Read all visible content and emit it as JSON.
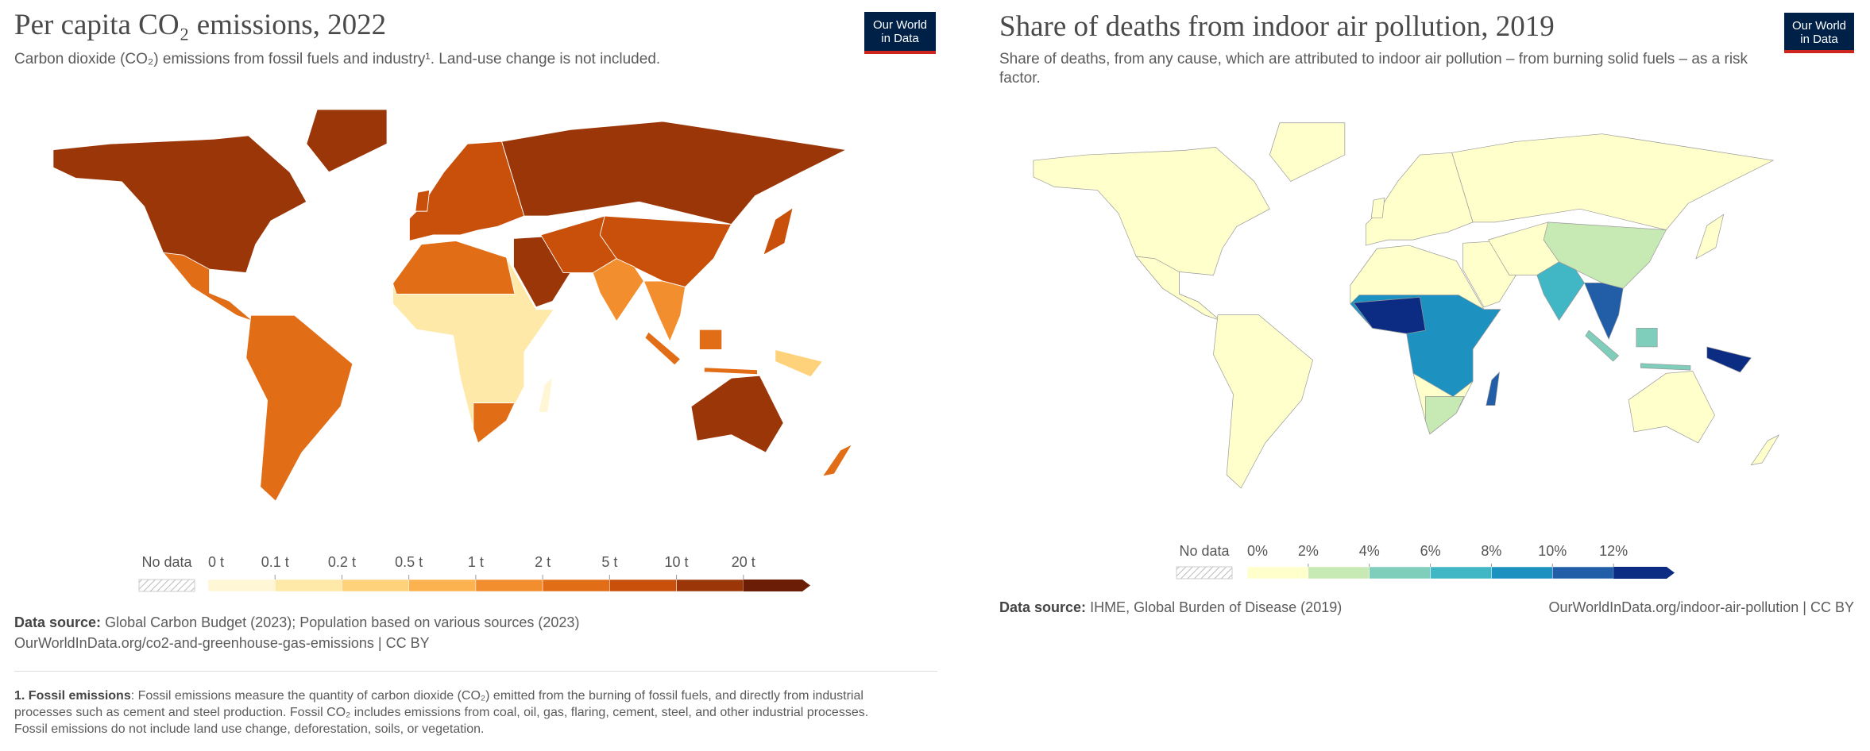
{
  "left": {
    "title": "Per capita CO₂ emissions, 2022",
    "subtitle": "Carbon dioxide (CO₂) emissions from fossil fuels and industry¹. Land-use change is not included.",
    "logo": [
      "Our World",
      "in Data"
    ],
    "legend": {
      "no_data": "No data",
      "labels": [
        "0 t",
        "0.1 t",
        "0.2 t",
        "0.5 t",
        "1 t",
        "2 t",
        "5 t",
        "10 t",
        "20 t"
      ],
      "colors": [
        "#fff6d5",
        "#fee9a8",
        "#fdd27a",
        "#fbb24f",
        "#f28e2e",
        "#e26d17",
        "#c8500b",
        "#9b3608",
        "#6b1e05"
      ]
    },
    "source_label": "Data source:",
    "source": "Global Carbon Budget (2023); Population based on various sources (2023)",
    "url": "OurWorldInData.org/co2-and-greenhouse-gas-emissions | CC BY",
    "note_label": "1. Fossil emissions",
    "note": ": Fossil emissions measure the quantity of carbon dioxide (CO₂) emitted from the burning of fossil fuels, and directly from industrial processes such as cement and steel production. Fossil CO₂ includes emissions from coal, oil, gas, flaring, cement, steel, and other industrial processes. Fossil emissions do not include land use change, deforestation, soils, or vegetation."
  },
  "right": {
    "title": "Share of deaths from indoor air pollution, 2019",
    "subtitle": "Share of deaths, from any cause, which are attributed to indoor air pollution – from burning solid fuels – as a risk factor.",
    "logo": [
      "Our World",
      "in Data"
    ],
    "legend": {
      "no_data": "No data",
      "labels": [
        "0%",
        "2%",
        "4%",
        "6%",
        "8%",
        "10%",
        "12%"
      ],
      "colors": [
        "#ffffcc",
        "#c7e9b4",
        "#7fcdbb",
        "#41b6c4",
        "#1d91c0",
        "#225ea8",
        "#0c2c84"
      ]
    },
    "source_label": "Data source:",
    "source": "IHME, Global Burden of Disease (2019)",
    "url": "OurWorldInData.org/indoor-air-pollution | CC BY"
  }
}
